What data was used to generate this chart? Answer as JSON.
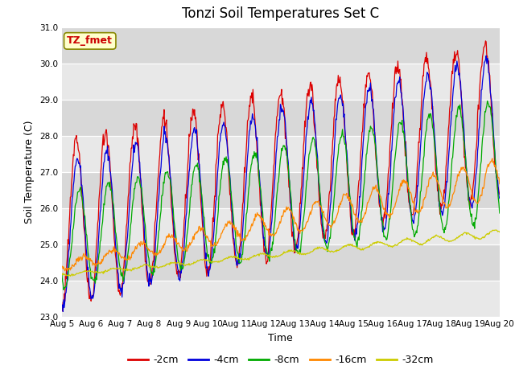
{
  "title": "Tonzi Soil Temperatures Set C",
  "xlabel": "Time",
  "ylabel": "Soil Temperature (C)",
  "ylim": [
    23.0,
    31.0
  ],
  "days": 15,
  "yticks": [
    23.0,
    24.0,
    25.0,
    26.0,
    27.0,
    28.0,
    29.0,
    30.0,
    31.0
  ],
  "xtick_labels": [
    "Aug 5",
    "Aug 6",
    "Aug 7",
    "Aug 8",
    "Aug 9",
    "Aug 10",
    "Aug 11",
    "Aug 12",
    "Aug 13",
    "Aug 14",
    "Aug 15",
    "Aug 16",
    "Aug 17",
    "Aug 18",
    "Aug 19",
    "Aug 20"
  ],
  "series_colors": [
    "#dd0000",
    "#0000dd",
    "#00aa00",
    "#ff8800",
    "#cccc00"
  ],
  "series_labels": [
    "-2cm",
    "-4cm",
    "-8cm",
    "-16cm",
    "-32cm"
  ],
  "plot_bg_color": "#e8e8e8",
  "fig_bg_color": "#ffffff",
  "band_colors": [
    "#e0e0e0",
    "#d0d0d0"
  ],
  "annotation_text": "TZ_fmet",
  "annotation_fg": "#cc0000",
  "annotation_bg": "#ffffcc",
  "annotation_border": "#888800",
  "grid_color": "#ffffff",
  "title_fontsize": 12,
  "axis_label_fontsize": 9,
  "tick_fontsize": 7.5,
  "legend_fontsize": 9
}
